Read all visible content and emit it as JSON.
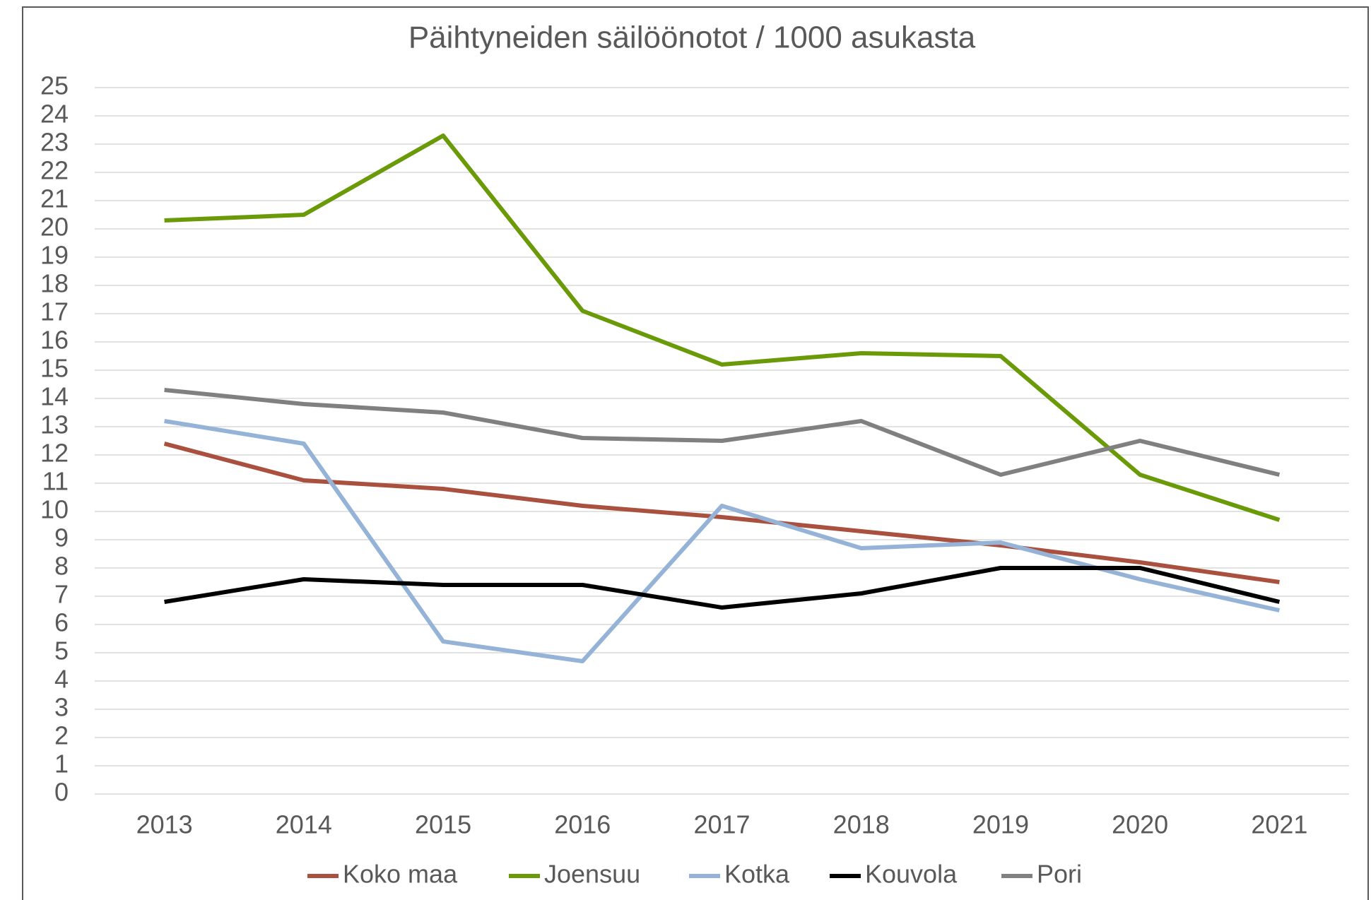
{
  "chart_data": {
    "type": "line",
    "title": "Päihtyneiden säilöönotot / 1000 asukasta",
    "categories": [
      "2013",
      "2014",
      "2015",
      "2016",
      "2017",
      "2018",
      "2019",
      "2020",
      "2021"
    ],
    "series": [
      {
        "name": "Koko maa",
        "color": "#a9503f",
        "values": [
          12.4,
          11.1,
          10.8,
          10.2,
          9.8,
          9.3,
          8.8,
          8.2,
          7.5
        ]
      },
      {
        "name": "Joensuu",
        "color": "#6a9a08",
        "values": [
          20.3,
          20.5,
          23.3,
          17.1,
          15.2,
          15.6,
          15.5,
          11.3,
          9.7
        ]
      },
      {
        "name": "Kotka",
        "color": "#95b3d7",
        "values": [
          13.2,
          12.4,
          5.4,
          4.7,
          10.2,
          8.7,
          8.9,
          7.6,
          6.5
        ]
      },
      {
        "name": "Kouvola",
        "color": "#000000",
        "values": [
          6.8,
          7.6,
          7.4,
          7.4,
          6.6,
          7.1,
          8.0,
          8.0,
          6.8
        ]
      },
      {
        "name": "Pori",
        "color": "#808080",
        "values": [
          14.3,
          13.8,
          13.5,
          12.6,
          12.5,
          13.2,
          11.3,
          12.5,
          11.3
        ]
      }
    ],
    "ylim": [
      0,
      25
    ],
    "yticks": [
      0,
      1,
      2,
      3,
      4,
      5,
      6,
      7,
      8,
      9,
      10,
      11,
      12,
      13,
      14,
      15,
      16,
      17,
      18,
      19,
      20,
      21,
      22,
      23,
      24,
      25
    ],
    "grid": true,
    "legend": "bottom"
  }
}
